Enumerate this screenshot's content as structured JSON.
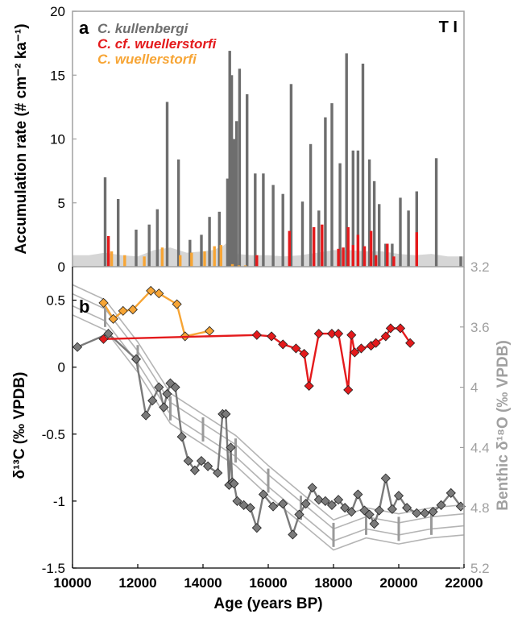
{
  "chart_data": [
    {
      "panel_label": "a",
      "panel_tag": "T I",
      "type": "bar",
      "ylabel": "Accumulation rate (# cm⁻² ka⁻¹)",
      "ylim": [
        0,
        20
      ],
      "yticks": [
        0,
        5,
        10,
        15,
        20
      ],
      "xlim": [
        10000,
        22000
      ],
      "legend_position": "top-left",
      "series": [
        {
          "name": "C. kullenbergi",
          "color": "#6e6e6e",
          "x": [
            11000,
            11400,
            11950,
            12350,
            12600,
            12900,
            13250,
            13600,
            13950,
            14200,
            14500,
            14750,
            14820,
            14880,
            14950,
            15030,
            15120,
            15350,
            15600,
            15850,
            16150,
            16450,
            16700,
            17050,
            17300,
            17550,
            17750,
            17950,
            18200,
            18400,
            18600,
            18750,
            18900,
            19100,
            19250,
            19400,
            19600,
            19800,
            20050,
            20300,
            20550,
            21150,
            21900
          ],
          "values": [
            7.0,
            5.3,
            2.9,
            3.3,
            4.5,
            12.9,
            8.4,
            2.1,
            2.5,
            3.9,
            4.3,
            6.9,
            16.9,
            15.0,
            10.0,
            11.4,
            15.5,
            13.5,
            7.3,
            7.3,
            6.4,
            5.7,
            14.3,
            5.1,
            9.6,
            4.4,
            11.7,
            12.8,
            8.1,
            16.7,
            9.1,
            9.1,
            15.9,
            8.4,
            6.7,
            4.9,
            1.8,
            1.8,
            5.4,
            4.4,
            5.9,
            8.5,
            0.8
          ]
        },
        {
          "name": "C. cf. wuellerstorfi",
          "color": "#e41a1c",
          "x": [
            11100,
            15650,
            16650,
            17400,
            17650,
            18150,
            18300,
            18450,
            18600,
            18750,
            18950,
            19150,
            19300,
            19650,
            19850,
            20550
          ],
          "values": [
            2.4,
            0.9,
            2.8,
            3.1,
            3.3,
            1.4,
            1.5,
            3.1,
            1.7,
            2.5,
            1.6,
            2.8,
            0.9,
            1.8,
            0.8,
            2.7
          ]
        },
        {
          "name": "C. wuellerstorfi",
          "color": "#f7a535",
          "x": [
            11200,
            11600,
            12200,
            12750,
            13300,
            13650,
            14050,
            14350,
            14550,
            14900,
            15100,
            15300
          ],
          "values": [
            1.2,
            0.9,
            0.8,
            1.5,
            0.9,
            1.1,
            1.2,
            1.6,
            1.7,
            0.2,
            0.1,
            0.1
          ]
        }
      ],
      "background_area": {
        "color": "#d6d6d6",
        "x": [
          10000,
          10500,
          11000,
          11500,
          12000,
          12500,
          13000,
          13500,
          14000,
          14300,
          14600,
          14800,
          15000,
          15500,
          16000,
          16500,
          17000,
          17500,
          18000,
          18500,
          19000,
          19500,
          20000,
          20500,
          21000,
          21500,
          22000
        ],
        "values": [
          0.9,
          0.9,
          1.1,
          0.9,
          0.8,
          1.3,
          1.5,
          1.1,
          1.2,
          1.3,
          1.6,
          2.0,
          1.0,
          0.9,
          0.9,
          0.8,
          0.9,
          1.1,
          1.3,
          1.3,
          1.2,
          1.2,
          1.0,
          0.9,
          1.0,
          0.8,
          0.8
        ]
      }
    },
    {
      "panel_label": "b",
      "type": "line",
      "xlabel": "Age (years BP)",
      "xlim": [
        10000,
        22000
      ],
      "xticks": [
        10000,
        12000,
        14000,
        16000,
        18000,
        20000,
        22000
      ],
      "ylabel": "δ¹³C (‰ VPDB)",
      "ylim": [
        -1.5,
        0.75
      ],
      "yticks": [
        -1.5,
        -1,
        -0.5,
        0,
        0.5
      ],
      "ylabel_right": "Benthic δ¹⁸O (‰ VPDB)",
      "ylim_right": [
        5.2,
        3.2
      ],
      "yticks_right": [
        3.2,
        3.6,
        4,
        4.4,
        4.8,
        5.2
      ],
      "series": [
        {
          "name": "C. kullenbergi",
          "color": "#7a7a7a",
          "marker": "diamond",
          "x": [
            10150,
            11100,
            11950,
            12250,
            12450,
            12650,
            12800,
            12900,
            13000,
            13150,
            13350,
            13550,
            13750,
            13950,
            14150,
            14450,
            14600,
            14700,
            14800,
            14850,
            14900,
            14950,
            15050,
            15250,
            15450,
            15650,
            15850,
            16150,
            16450,
            16750,
            16950,
            17150,
            17350,
            17550,
            17750,
            17950,
            18150,
            18350,
            18550,
            18750,
            18950,
            19100,
            19250,
            19400,
            19600,
            19800,
            20000,
            20250,
            20550,
            20800,
            21050,
            21300,
            21600,
            21900
          ],
          "values": [
            0.15,
            0.25,
            0.06,
            -0.36,
            -0.25,
            -0.15,
            -0.3,
            -0.2,
            -0.12,
            -0.15,
            -0.52,
            -0.7,
            -0.77,
            -0.7,
            -0.74,
            -0.79,
            -0.35,
            -0.35,
            -0.88,
            -0.6,
            -0.86,
            -0.87,
            -1.0,
            -1.03,
            -1.05,
            -1.2,
            -0.95,
            -1.04,
            -1.02,
            -1.25,
            -1.1,
            -1.02,
            -0.9,
            -0.99,
            -1.0,
            -1.03,
            -0.99,
            -1.05,
            -1.08,
            -0.95,
            -1.07,
            -1.1,
            -1.17,
            -1.07,
            -0.83,
            -1.06,
            -0.96,
            -1.05,
            -1.09,
            -1.09,
            -1.08,
            -1.03,
            -0.94,
            -1.04
          ]
        },
        {
          "name": "C. cf. wuellerstorfi",
          "color": "#e41a1c",
          "marker": "diamond",
          "x": [
            10950,
            15650,
            16100,
            16450,
            16850,
            17100,
            17250,
            17550,
            17950,
            18150,
            18450,
            18550,
            18650,
            18850,
            19150,
            19300,
            19600,
            19750,
            20050,
            20350
          ],
          "values": [
            0.21,
            0.24,
            0.23,
            0.17,
            0.14,
            0.1,
            -0.14,
            0.25,
            0.25,
            0.25,
            -0.17,
            0.24,
            0.11,
            0.14,
            0.16,
            0.18,
            0.23,
            0.29,
            0.29,
            0.18
          ]
        },
        {
          "name": "C. wuellerstorfi",
          "color": "#f7a535",
          "marker": "diamond",
          "x": [
            10950,
            11250,
            11550,
            11850,
            12400,
            12650,
            13200,
            13450,
            14200
          ],
          "values": [
            0.48,
            0.36,
            0.42,
            0.43,
            0.57,
            0.55,
            0.47,
            0.23,
            0.27
          ]
        },
        {
          "name": "Benthic δ¹⁸O",
          "color": "#b4b4b4",
          "axis": "right",
          "x": [
            10000,
            11000,
            12000,
            13000,
            14000,
            15000,
            16000,
            17000,
            18000,
            19000,
            20000,
            21000,
            22000
          ],
          "values": [
            3.42,
            3.52,
            3.8,
            4.14,
            4.28,
            4.42,
            4.62,
            4.8,
            4.98,
            4.9,
            4.94,
            4.9,
            4.88
          ],
          "band_offsets": [
            -0.1,
            -0.04,
            0.04,
            0.1
          ],
          "error_bar_x": [
            11000,
            12000,
            13000,
            14000,
            15000,
            16000,
            17000,
            18000,
            19000,
            20000,
            21000
          ],
          "error_bar_half": 0.08
        }
      ]
    }
  ]
}
